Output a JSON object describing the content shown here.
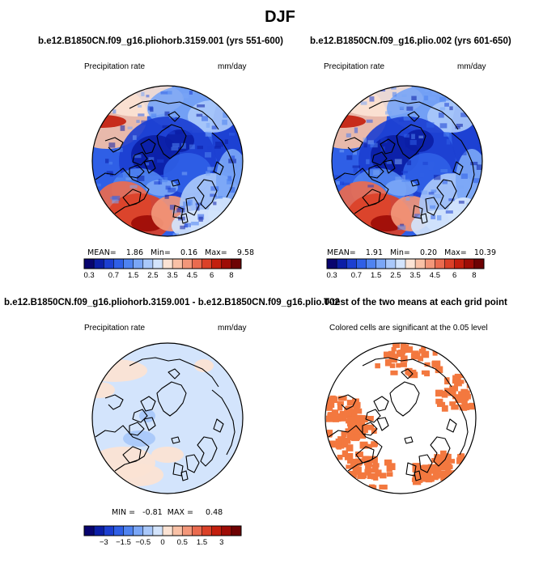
{
  "figure": {
    "title": "DJF"
  },
  "panels": [
    {
      "title": "b.e12.B1850CN.f09_g16.pliohorb.3159.001 (yrs 551-600)",
      "left_label": "Precipitation rate",
      "right_label": "mm/day",
      "stats": "MEAN=    1.86   Min=    0.16   Max=    9.58"
    },
    {
      "title": "b.e12.B1850CN.f09_g16.plio.002 (yrs 601-650)",
      "left_label": "Precipitation rate",
      "right_label": "mm/day",
      "stats": "MEAN=    1.91   Min=    0.20   Max=   10.39"
    },
    {
      "title": "b.e12.B1850CN.f09_g16.pliohorb.3159.001 - b.e12.B1850CN.f09_g16.plio.002",
      "left_label": "Precipitation rate",
      "right_label": "mm/day",
      "stats": "MIN =   -0.81  MAX =     0.48"
    },
    {
      "title": "T-test of the two means at each grid point",
      "left_label": "Colored cells are significant at the 0.05 level",
      "right_label": "",
      "stats": ""
    }
  ],
  "colorbars": {
    "precip": {
      "colors": [
        "#08046e",
        "#0b1ea6",
        "#1c3fd1",
        "#2f5fe6",
        "#4f83f0",
        "#7aa6f6",
        "#a9c8fa",
        "#d3e4fc",
        "#fbe3d4",
        "#f9c1a6",
        "#f3977a",
        "#ea6b4f",
        "#db4128",
        "#c31f0e",
        "#9e0c06",
        "#6e0203"
      ],
      "ticks": [
        "0.3",
        "0.7",
        "1.5",
        "2.5",
        "3.5",
        "4.5",
        "6",
        "8"
      ]
    },
    "diff": {
      "colors": [
        "#08046e",
        "#0b1ea6",
        "#1c3fd1",
        "#2f5fe6",
        "#4f83f0",
        "#7aa6f6",
        "#a9c8fa",
        "#d3e4fc",
        "#fbe3d4",
        "#f9c1a6",
        "#f3977a",
        "#ea6b4f",
        "#db4128",
        "#c31f0e",
        "#9e0c06",
        "#6e0203"
      ],
      "ticks": [
        "−3",
        "−1.5",
        "−0.5",
        "0",
        "0.5",
        "1.5",
        "3"
      ]
    }
  },
  "chart_data": [
    {
      "type": "heatmap",
      "title": "b.e12.B1850CN.f09_g16.pliohorb.3159.001 (yrs 551-600)",
      "projection": "north polar stereographic",
      "variable": "Precipitation rate",
      "units": "mm/day",
      "mean": 1.86,
      "min": 0.16,
      "max": 9.58,
      "colorbar_ticks": [
        0.3,
        0.7,
        1.5,
        2.5,
        3.5,
        4.5,
        6,
        8
      ]
    },
    {
      "type": "heatmap",
      "title": "b.e12.B1850CN.f09_g16.plio.002 (yrs 601-650)",
      "projection": "north polar stereographic",
      "variable": "Precipitation rate",
      "units": "mm/day",
      "mean": 1.91,
      "min": 0.2,
      "max": 10.39,
      "colorbar_ticks": [
        0.3,
        0.7,
        1.5,
        2.5,
        3.5,
        4.5,
        6,
        8
      ]
    },
    {
      "type": "heatmap",
      "title": "b.e12.B1850CN.f09_g16.pliohorb.3159.001 - b.e12.B1850CN.f09_g16.plio.002",
      "projection": "north polar stereographic",
      "variable": "Precipitation rate",
      "units": "mm/day",
      "min": -0.81,
      "max": 0.48,
      "colorbar_ticks": [
        -3,
        -1.5,
        -0.5,
        0,
        0.5,
        1.5,
        3
      ]
    },
    {
      "type": "heatmap",
      "title": "T-test of the two means at each grid point",
      "projection": "north polar stereographic",
      "note": "Colored cells are significant at the 0.05 level",
      "significance_level": 0.05
    }
  ]
}
